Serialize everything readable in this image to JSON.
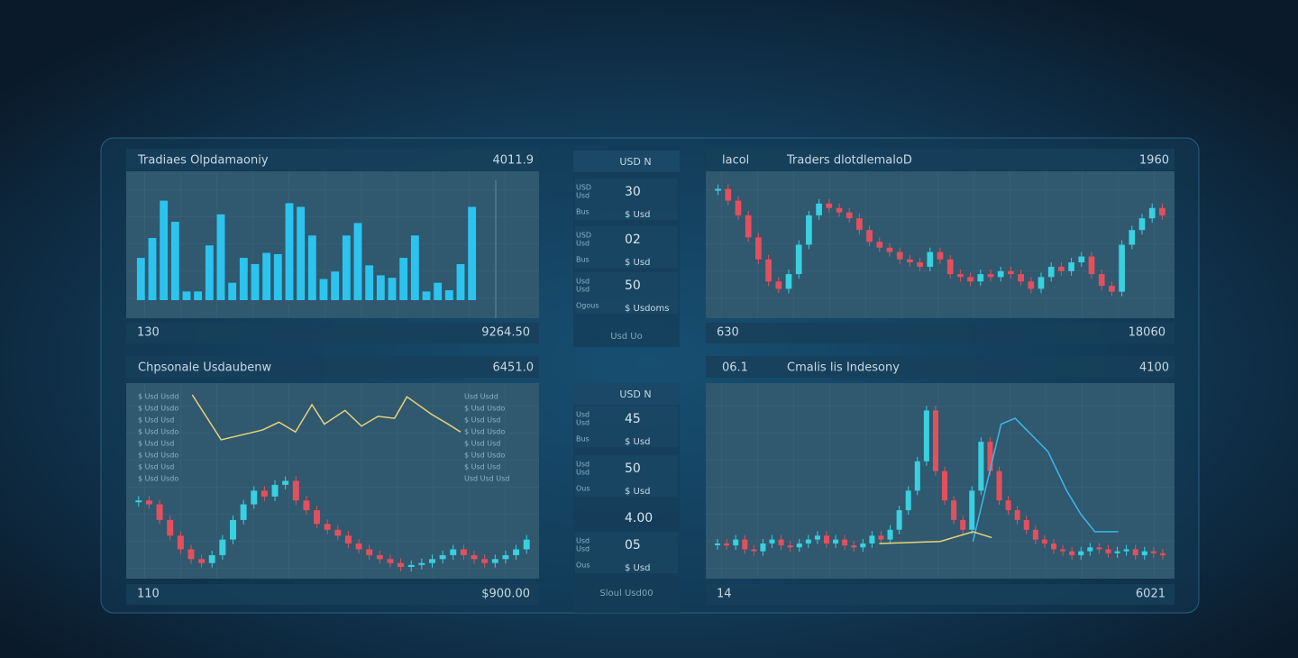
{
  "panels": [
    {
      "title": "Tradiaes Olpdamaoniy",
      "value": "4011.9",
      "footer_left": "130",
      "footer_right": "9264.50",
      "charts": [
        {
          "type": "bar",
          "color": "#2bc4ef",
          "ylim": [
            0,
            100
          ],
          "values": [
            34,
            50,
            80,
            63,
            7,
            7,
            44,
            69,
            14,
            34,
            29,
            38,
            37,
            78,
            75,
            52,
            17,
            23,
            52,
            62,
            28,
            20,
            18,
            34,
            52,
            7,
            14,
            8,
            29,
            75
          ]
        }
      ]
    },
    {
      "label": "lacol",
      "title": "Traders dlotdlemaloD",
      "value": "1960",
      "footer_left": "630",
      "footer_right": "18060",
      "charts": [
        {
          "type": "candlestick",
          "up_color": "#39d0e0",
          "down_color": "#e2505e",
          "ylim": [
            0,
            100
          ],
          "values": [
            88,
            80,
            70,
            55,
            40,
            25,
            20,
            30,
            50,
            70,
            78,
            75,
            72,
            68,
            60,
            52,
            48,
            45,
            40,
            38,
            35,
            45,
            40,
            30,
            28,
            25,
            30,
            28,
            32,
            30,
            25,
            20,
            28,
            35,
            32,
            38,
            42,
            30,
            22,
            18,
            50,
            60,
            68,
            75,
            70
          ]
        }
      ]
    },
    {
      "title": "Chpsonale Usdaubenw",
      "value": "6451.0",
      "footer_left": "110",
      "footer_right": "$900.00",
      "legend_left": [
        "$ Usd Usdd",
        "$ Usd Usdo",
        "$ Usd Usd",
        "$ Usd Usdo",
        "$ Usd Usd",
        "$ Usd Usdo",
        "$ Usd Usd",
        "$ Usd Usdo"
      ],
      "legend_right": [
        "Usd Usdd",
        "$ Usd Usdo",
        "$ Usd Usd",
        "$ Usd Usdo",
        "$ Usd Usd",
        "$ Usd Usdo",
        "$ Usd Usd",
        "Usd Usd Usd"
      ],
      "charts": [
        {
          "type": "line",
          "color": "#e8d27a",
          "xlim": [
            0,
            100
          ],
          "ylim": [
            0,
            100
          ],
          "x": [
            16,
            23,
            33,
            37,
            41,
            45,
            48,
            53,
            57,
            61,
            65,
            68,
            74,
            78,
            81
          ],
          "values": [
            94,
            71,
            76,
            80,
            75,
            89,
            79,
            86,
            78,
            83,
            82,
            93,
            84,
            79,
            75
          ]
        },
        {
          "type": "candlestick",
          "up_color": "#39d0e0",
          "down_color": "#e2505e",
          "ylim": [
            0,
            100
          ],
          "values": [
            40,
            38,
            30,
            22,
            15,
            10,
            8,
            12,
            20,
            30,
            38,
            45,
            42,
            48,
            50,
            40,
            35,
            28,
            25,
            22,
            18,
            15,
            12,
            10,
            8,
            6,
            7,
            8,
            10,
            12,
            15,
            12,
            10,
            8,
            10,
            12,
            15,
            20
          ]
        }
      ]
    },
    {
      "label": "06.1",
      "title": "Cmalis lis Indesony",
      "value": "4100",
      "footer_left": "14",
      "footer_right": "6021",
      "charts": [
        {
          "type": "candlestick",
          "up_color": "#39d0e0",
          "down_color": "#e2505e",
          "ylim": [
            0,
            100
          ],
          "values": [
            18,
            17,
            20,
            15,
            14,
            18,
            20,
            17,
            16,
            18,
            20,
            22,
            18,
            20,
            17,
            16,
            18,
            22,
            20,
            25,
            35,
            45,
            60,
            86,
            55,
            40,
            30,
            25,
            45,
            70,
            55,
            40,
            35,
            30,
            25,
            20,
            18,
            15,
            14,
            12,
            14,
            16,
            15,
            13,
            14,
            15,
            12,
            14,
            13,
            12
          ]
        },
        {
          "type": "line",
          "color": "#3ab8e8",
          "xlim": [
            0,
            100
          ],
          "ylim": [
            0,
            100
          ],
          "x": [
            57,
            63,
            66,
            73,
            77,
            80,
            83,
            88
          ],
          "values": [
            19,
            79,
            82,
            65,
            45,
            33,
            24,
            24
          ]
        },
        {
          "type": "line",
          "color": "#e8d27a",
          "xlim": [
            0,
            100
          ],
          "ylim": [
            0,
            100
          ],
          "x": [
            37,
            50,
            57,
            61
          ],
          "values": [
            18,
            19,
            24,
            21
          ]
        }
      ]
    }
  ],
  "side_panels": [
    {
      "header": "USD N",
      "rows": [
        {
          "labels": [
            "USD",
            "Usd",
            "Bus"
          ],
          "value": "30",
          "note": "$ Usd"
        },
        {
          "labels": [
            "USD",
            "Usd",
            "Bus"
          ],
          "value": "02",
          "note": "$ Usd"
        },
        {
          "labels": [
            "Usd",
            "Usd",
            "Ogous"
          ],
          "value": "50",
          "note": "$ Usdoms"
        }
      ],
      "footer": "Usd Uo"
    },
    {
      "header": "USD N",
      "rows": [
        {
          "labels": [
            "Usd",
            "Usd",
            "Bus"
          ],
          "value": "45",
          "note": "$ Usd"
        },
        {
          "labels": [
            "Usd",
            "Usd",
            "Ous"
          ],
          "value": "50",
          "note": "$ Usd"
        },
        {
          "value": "4.00"
        },
        {
          "labels": [
            "Usd",
            "Usd",
            "Ous"
          ],
          "value": "05",
          "note": "$ Usd"
        }
      ],
      "footer": "Sloul Usd00"
    }
  ]
}
